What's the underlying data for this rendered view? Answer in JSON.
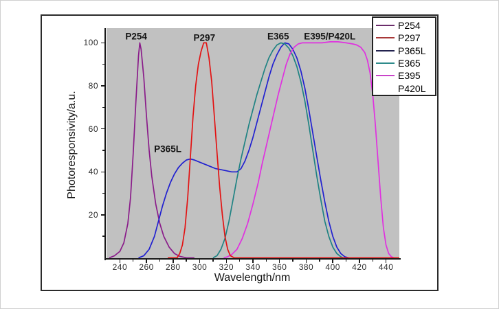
{
  "chart_data": {
    "type": "line",
    "title": "",
    "xlabel": "Wavelength/nm",
    "ylabel": "Photoresponsivity/a.u.",
    "xlim": [
      230,
      450
    ],
    "ylim": [
      0,
      107
    ],
    "grid": false,
    "plot_bg_color": "#c1c1c1",
    "axis_color": "#1a1a1a",
    "x_major_ticks": [
      240,
      260,
      280,
      300,
      320,
      340,
      360,
      380,
      400,
      420,
      440
    ],
    "x_minor_ticks": [
      250,
      270,
      290,
      310,
      330,
      350,
      370,
      390,
      410,
      430
    ],
    "y_major_ticks": [
      20,
      40,
      60,
      80,
      100
    ],
    "y_minor_ticks": [
      10,
      30,
      50,
      70,
      90
    ],
    "series": [
      {
        "name": "P254",
        "color": "#8a1c8a",
        "z": 1,
        "points": [
          [
            232,
            0
          ],
          [
            236,
            1
          ],
          [
            240,
            3
          ],
          [
            243,
            7
          ],
          [
            246,
            16
          ],
          [
            248,
            28
          ],
          [
            250,
            48
          ],
          [
            252,
            72
          ],
          [
            254,
            94
          ],
          [
            255,
            100
          ],
          [
            256,
            97
          ],
          [
            258,
            84
          ],
          [
            260,
            66
          ],
          [
            262,
            50
          ],
          [
            264,
            38
          ],
          [
            267,
            25
          ],
          [
            270,
            16
          ],
          [
            273,
            10
          ],
          [
            277,
            5
          ],
          [
            281,
            2
          ],
          [
            285,
            0.7
          ],
          [
            290,
            0
          ],
          [
            296,
            0
          ]
        ]
      },
      {
        "name": "P297",
        "color": "#e31212",
        "z": 5,
        "points": [
          [
            276,
            0
          ],
          [
            283,
            0
          ],
          [
            285,
            2
          ],
          [
            287,
            6
          ],
          [
            289,
            14
          ],
          [
            291,
            28
          ],
          [
            293,
            47
          ],
          [
            295,
            66
          ],
          [
            297,
            80
          ],
          [
            299,
            90
          ],
          [
            301,
            96
          ],
          [
            303,
            100
          ],
          [
            305,
            100
          ],
          [
            307,
            93
          ],
          [
            309,
            82
          ],
          [
            311,
            66
          ],
          [
            313,
            49
          ],
          [
            315,
            33
          ],
          [
            317,
            20
          ],
          [
            319,
            10
          ],
          [
            321,
            4
          ],
          [
            323,
            1
          ],
          [
            326,
            0
          ],
          [
            350,
            0
          ],
          [
            380,
            0
          ],
          [
            410,
            0
          ],
          [
            440,
            0
          ],
          [
            450,
            0
          ]
        ]
      },
      {
        "name": "P365L",
        "color": "#2020d0",
        "z": 2,
        "points": [
          [
            254,
            0
          ],
          [
            258,
            1
          ],
          [
            262,
            4
          ],
          [
            266,
            10
          ],
          [
            269,
            17
          ],
          [
            272,
            24
          ],
          [
            275,
            30
          ],
          [
            278,
            35
          ],
          [
            281,
            39
          ],
          [
            284,
            42
          ],
          [
            287,
            44
          ],
          [
            290,
            45.5
          ],
          [
            293,
            46
          ],
          [
            296,
            45.5
          ],
          [
            300,
            44.5
          ],
          [
            304,
            43.5
          ],
          [
            308,
            42.5
          ],
          [
            312,
            41.5
          ],
          [
            316,
            41
          ],
          [
            320,
            40.5
          ],
          [
            324,
            40
          ],
          [
            328,
            40
          ],
          [
            331,
            41.5
          ],
          [
            334,
            45
          ],
          [
            337,
            50
          ],
          [
            340,
            56
          ],
          [
            343,
            63
          ],
          [
            346,
            70
          ],
          [
            349,
            77
          ],
          [
            352,
            84
          ],
          [
            355,
            90
          ],
          [
            358,
            94.5
          ],
          [
            361,
            98
          ],
          [
            364,
            100
          ],
          [
            367,
            99.5
          ],
          [
            370,
            97
          ],
          [
            373,
            93
          ],
          [
            376,
            87
          ],
          [
            379,
            79
          ],
          [
            382,
            69
          ],
          [
            385,
            58
          ],
          [
            388,
            47
          ],
          [
            391,
            36
          ],
          [
            394,
            26
          ],
          [
            397,
            17
          ],
          [
            400,
            10
          ],
          [
            403,
            5
          ],
          [
            406,
            2
          ],
          [
            409,
            0.5
          ],
          [
            412,
            0
          ]
        ]
      },
      {
        "name": "E365",
        "color": "#1f8383",
        "z": 3,
        "points": [
          [
            310,
            0
          ],
          [
            313,
            1
          ],
          [
            316,
            4
          ],
          [
            319,
            9
          ],
          [
            322,
            17
          ],
          [
            325,
            27
          ],
          [
            328,
            37
          ],
          [
            331,
            46
          ],
          [
            334,
            54
          ],
          [
            337,
            62
          ],
          [
            340,
            69
          ],
          [
            343,
            76
          ],
          [
            346,
            82
          ],
          [
            349,
            88
          ],
          [
            352,
            93
          ],
          [
            355,
            96.5
          ],
          [
            358,
            99
          ],
          [
            361,
            100
          ],
          [
            364,
            99.5
          ],
          [
            367,
            97.5
          ],
          [
            370,
            94
          ],
          [
            373,
            89
          ],
          [
            376,
            82
          ],
          [
            379,
            73
          ],
          [
            382,
            62
          ],
          [
            385,
            50
          ],
          [
            388,
            38
          ],
          [
            391,
            27
          ],
          [
            394,
            17
          ],
          [
            397,
            10
          ],
          [
            400,
            5
          ],
          [
            403,
            2
          ],
          [
            406,
            0.5
          ],
          [
            408,
            0
          ]
        ]
      },
      {
        "name": "E395",
        "color": "#e030e0",
        "z": 4,
        "points": [
          [
            318,
            0
          ],
          [
            321,
            0.5
          ],
          [
            324,
            1.5
          ],
          [
            328,
            4
          ],
          [
            332,
            9
          ],
          [
            336,
            16
          ],
          [
            340,
            25
          ],
          [
            344,
            35
          ],
          [
            347,
            44
          ],
          [
            350,
            52
          ],
          [
            353,
            60
          ],
          [
            356,
            68
          ],
          [
            359,
            76
          ],
          [
            362,
            83
          ],
          [
            365,
            90
          ],
          [
            368,
            95
          ],
          [
            371,
            98
          ],
          [
            374,
            99.5
          ],
          [
            377,
            100
          ],
          [
            385,
            100
          ],
          [
            392,
            100
          ],
          [
            398,
            100.5
          ],
          [
            404,
            100.5
          ],
          [
            410,
            100
          ],
          [
            415,
            99.5
          ],
          [
            418,
            99
          ],
          [
            421,
            98
          ],
          [
            424,
            95.5
          ],
          [
            426,
            92
          ],
          [
            428,
            86
          ],
          [
            430,
            76
          ],
          [
            432,
            62
          ],
          [
            434,
            45
          ],
          [
            436,
            28
          ],
          [
            438,
            14
          ],
          [
            440,
            6
          ],
          [
            442,
            2
          ],
          [
            444,
            0.5
          ],
          [
            446,
            0
          ]
        ]
      }
    ],
    "annotations": [
      {
        "text": "P254",
        "x": 252.3,
        "y": 103
      },
      {
        "text": "P297",
        "x": 303.5,
        "y": 102.5
      },
      {
        "text": "E365",
        "x": 359.0,
        "y": 103
      },
      {
        "text": "E395/P420L",
        "x": 397.7,
        "y": 103
      },
      {
        "text": "P365L",
        "x": 276.0,
        "y": 50.5
      }
    ]
  },
  "legend": {
    "entries": [
      {
        "label": "P254",
        "color": "#6b2d6b"
      },
      {
        "label": "P297",
        "color": "#a83838"
      },
      {
        "label": "P365L",
        "color": "#23234f"
      },
      {
        "label": "E365",
        "color": "#2e8b8b"
      },
      {
        "label": "E395",
        "color": "#c944c9"
      },
      {
        "label": "P420L",
        "color": null
      }
    ]
  }
}
